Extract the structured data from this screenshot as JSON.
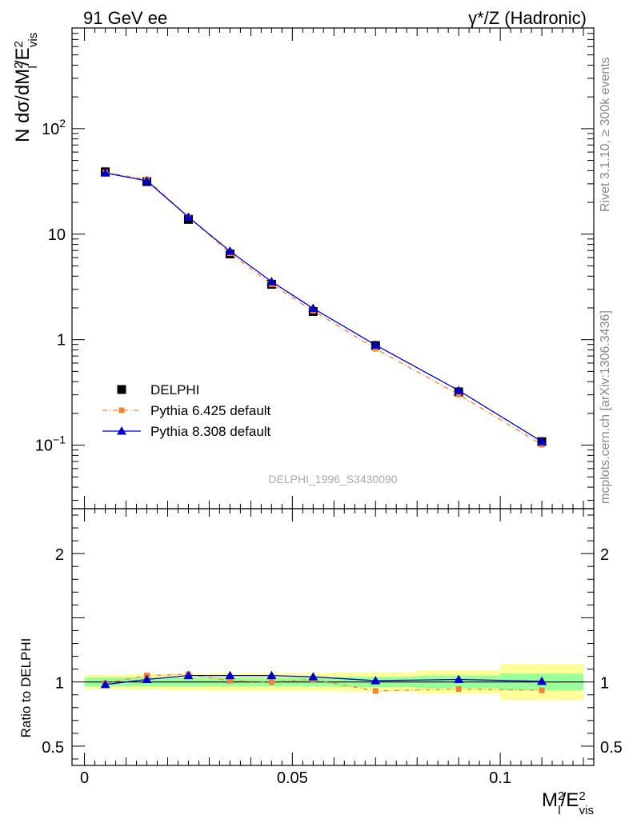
{
  "header": {
    "left_title": "91 GeV ee",
    "right_title": "γ*/Z (Hadronic)"
  },
  "side_labels": {
    "rivet": "Rivet 3.1.10, ≥ 300k events",
    "mcplots": "mcplots.cern.ch [arXiv:1306.3436]"
  },
  "watermark": "DELPHI_1996_S3430090",
  "colors": {
    "data": "#000000",
    "pythia6": "#f58231",
    "pythia8": "#0000cc",
    "band_inner": "#99ff99",
    "band_outer": "#ffff99"
  },
  "chart_data": [
    {
      "type": "line",
      "panel": "main",
      "ylabel": "N dσ/dM_l^2/E_vis^2",
      "yscale": "log",
      "ylim": [
        0.025,
        900
      ],
      "xlim": [
        -0.003,
        0.1225
      ],
      "yticks": [
        {
          "value": 100,
          "label": "10",
          "sup": "2"
        },
        {
          "value": 10,
          "label": "10",
          "sup": ""
        },
        {
          "value": 1,
          "label": "1",
          "sup": ""
        },
        {
          "value": 0.1,
          "label": "10",
          "sup": "−1"
        }
      ],
      "legend": {
        "placement": "bottom-left",
        "entries": [
          "DELPHI",
          "Pythia 6.425 default",
          "Pythia 8.308 default"
        ]
      },
      "x": [
        0.005,
        0.015,
        0.025,
        0.035,
        0.045,
        0.055,
        0.07,
        0.09,
        0.11
      ],
      "series": [
        {
          "name": "DELPHI",
          "marker": "square",
          "values": [
            39,
            31.5,
            13.8,
            6.5,
            3.35,
            1.85,
            0.88,
            0.32,
            0.108
          ]
        },
        {
          "name": "Pythia 6.425 default",
          "marker": "square-small",
          "values": [
            38.5,
            33,
            14.6,
            6.6,
            3.35,
            1.88,
            0.82,
            0.302,
            0.101
          ]
        },
        {
          "name": "Pythia 8.308 default",
          "marker": "triangle",
          "values": [
            38,
            32,
            14.5,
            6.9,
            3.55,
            1.98,
            0.89,
            0.33,
            0.108
          ]
        }
      ]
    },
    {
      "type": "line",
      "panel": "ratio",
      "ylabel": "Ratio to DELPHI",
      "xlabel": "M_l^2/E_vis^2",
      "ylim": [
        0.35,
        2.35
      ],
      "xlim": [
        -0.003,
        0.1225
      ],
      "xticks": [
        {
          "value": 0,
          "label": "0"
        },
        {
          "value": 0.05,
          "label": "0.05"
        },
        {
          "value": 0.1,
          "label": "0.1"
        }
      ],
      "yticks": [
        {
          "value": 0.5,
          "label": "0.5"
        },
        {
          "value": 1,
          "label": "1"
        },
        {
          "value": 2,
          "label": "2"
        }
      ],
      "bins": [
        {
          "lo": 0.0,
          "hi": 0.01,
          "inner": 0.035,
          "outer": 0.055
        },
        {
          "lo": 0.01,
          "hi": 0.02,
          "inner": 0.035,
          "outer": 0.06
        },
        {
          "lo": 0.02,
          "hi": 0.03,
          "inner": 0.035,
          "outer": 0.065
        },
        {
          "lo": 0.03,
          "hi": 0.04,
          "inner": 0.035,
          "outer": 0.07
        },
        {
          "lo": 0.04,
          "hi": 0.05,
          "inner": 0.035,
          "outer": 0.07
        },
        {
          "lo": 0.05,
          "hi": 0.06,
          "inner": 0.035,
          "outer": 0.07
        },
        {
          "lo": 0.06,
          "hi": 0.08,
          "inner": 0.04,
          "outer": 0.075
        },
        {
          "lo": 0.08,
          "hi": 0.1,
          "inner": 0.05,
          "outer": 0.09
        },
        {
          "lo": 0.1,
          "hi": 0.12,
          "inner": 0.065,
          "outer": 0.14
        }
      ],
      "x": [
        0.005,
        0.015,
        0.025,
        0.035,
        0.045,
        0.055,
        0.07,
        0.09,
        0.11
      ],
      "series": [
        {
          "name": "Pythia 6.425 default",
          "marker": "square-small",
          "values": [
            0.99,
            1.05,
            1.06,
            1.01,
            1.0,
            1.02,
            0.93,
            0.945,
            0.935
          ]
        },
        {
          "name": "Pythia 8.308 default",
          "marker": "triangle",
          "values": [
            0.98,
            1.02,
            1.05,
            1.05,
            1.05,
            1.04,
            1.01,
            1.02,
            1.005
          ]
        }
      ]
    }
  ]
}
